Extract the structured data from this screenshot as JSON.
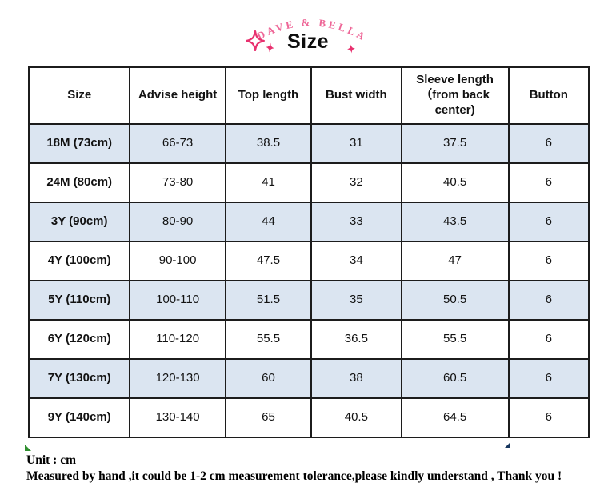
{
  "brand": {
    "name": "DAVE & BELLA",
    "color": "#ee6697",
    "sparkle_color": "#e8316f"
  },
  "title": "Size",
  "table": {
    "columns": [
      "Size",
      "Advise height",
      "Top length",
      "Bust width",
      "Sleeve length （from back center)",
      "Button"
    ],
    "rows": [
      [
        "18M (73cm)",
        "66-73",
        "38.5",
        "31",
        "37.5",
        "6"
      ],
      [
        "24M (80cm)",
        "73-80",
        "41",
        "32",
        "40.5",
        "6"
      ],
      [
        "3Y (90cm)",
        "80-90",
        "44",
        "33",
        "43.5",
        "6"
      ],
      [
        "4Y (100cm)",
        "90-100",
        "47.5",
        "34",
        "47",
        "6"
      ],
      [
        "5Y (110cm)",
        "100-110",
        "51.5",
        "35",
        "50.5",
        "6"
      ],
      [
        "6Y (120cm)",
        "110-120",
        "55.5",
        "36.5",
        "55.5",
        "6"
      ],
      [
        "7Y (130cm)",
        "120-130",
        "60",
        "38",
        "60.5",
        "6"
      ],
      [
        "9Y (140cm)",
        "130-140",
        "65",
        "40.5",
        "64.5",
        "6"
      ]
    ],
    "row_alt_color": "#dbe5f1",
    "border_color": "#1c1c1c"
  },
  "footer": {
    "unit": "Unit : cm",
    "note": "Measured by hand ,it could be 1-2 cm measurement tolerance,please kindly understand , Thank you !"
  }
}
